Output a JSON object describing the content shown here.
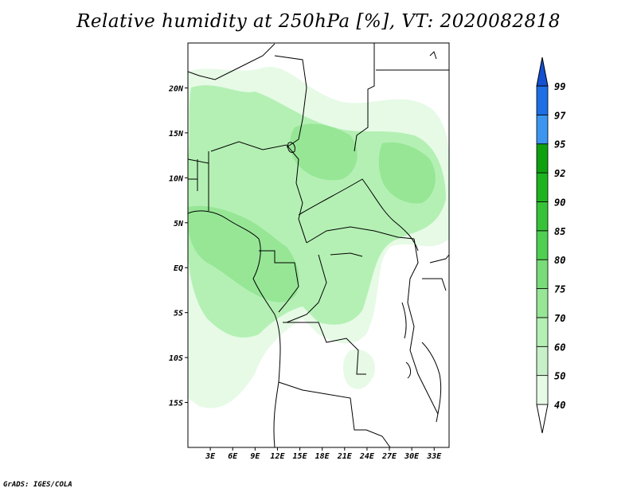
{
  "title": "Relative humidity at 250hPa [%], VT: 2020082818",
  "credit": "GrADS: IGES/COLA",
  "map": {
    "lon_ticks": [
      "3E",
      "6E",
      "9E",
      "12E",
      "15E",
      "18E",
      "21E",
      "24E",
      "27E",
      "30E",
      "33E"
    ],
    "lat_ticks": [
      "20N",
      "15N",
      "10N",
      "5N",
      "EQ",
      "5S",
      "10S",
      "15S"
    ],
    "lon_range": [
      0,
      35
    ],
    "lat_range": [
      -20,
      25
    ],
    "field_color_light": "#e6fae6",
    "field_color_mid": "#b4f0b4",
    "field_color_dark": "#96e696"
  },
  "colorbar": {
    "labels": [
      "40",
      "50",
      "60",
      "70",
      "75",
      "80",
      "85",
      "90",
      "92",
      "95",
      "97",
      "99"
    ],
    "colors": [
      "#ffffff",
      "#e6fae6",
      "#c8f0c8",
      "#b4f0b4",
      "#96e696",
      "#78dc78",
      "#50d050",
      "#37c337",
      "#1eb41e",
      "#0fa00f",
      "#3c96f0",
      "#1e6ee6",
      "#1450d2"
    ]
  }
}
